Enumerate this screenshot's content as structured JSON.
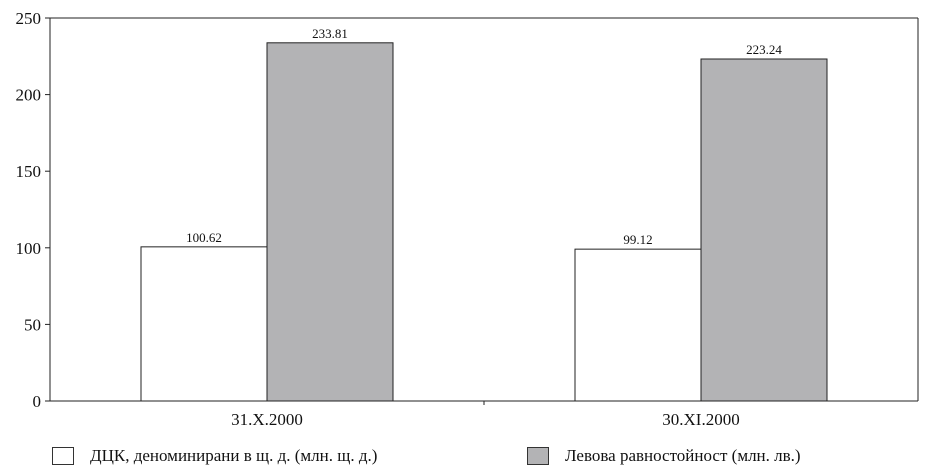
{
  "chart_data": {
    "type": "bar",
    "categories": [
      "31.X.2000",
      "30.XI.2000"
    ],
    "series": [
      {
        "name": "ДЦК, деноминирани в щ. д. (млн. щ. д.)",
        "values": [
          100.62,
          99.12
        ],
        "color": "#ffffff"
      },
      {
        "name": "Левова равностойност (млн. лв.)",
        "values": [
          233.81,
          223.24
        ],
        "color": "#b3b3b5"
      }
    ],
    "data_labels": [
      [
        "100.62",
        "99.12"
      ],
      [
        "233.81",
        "223.24"
      ]
    ],
    "ylim": [
      0,
      250
    ],
    "yticks": [
      0,
      50,
      100,
      150,
      200,
      250
    ],
    "title": "",
    "xlabel": "",
    "ylabel": "",
    "grid": false,
    "legend_position": "bottom"
  }
}
